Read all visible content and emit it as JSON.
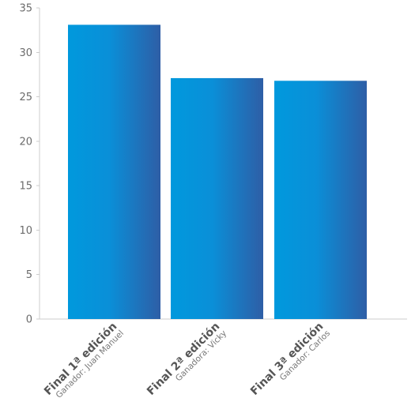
{
  "chart_data": {
    "type": "bar",
    "categories": [
      {
        "title": "Final 1ª edición",
        "subtitle": "Ganador: Juan Manuel"
      },
      {
        "title": "Final 2ª edición",
        "subtitle": "Ganadora: Vicky"
      },
      {
        "title": "Final 3ª edición",
        "subtitle": "Ganador: Carlos"
      }
    ],
    "values": [
      33.1,
      27.1,
      26.8
    ],
    "ylim": [
      0,
      35
    ],
    "yticks": [
      "0",
      "5",
      "10",
      "15",
      "20",
      "25",
      "30",
      "35"
    ],
    "title": "",
    "xlabel": "",
    "ylabel": "",
    "grid": false,
    "colors": {
      "bar_left": "#0099dd",
      "bar_right": "#2e5ea6",
      "axis": "#cccccc",
      "tick_text": "#6b6b6b"
    }
  }
}
